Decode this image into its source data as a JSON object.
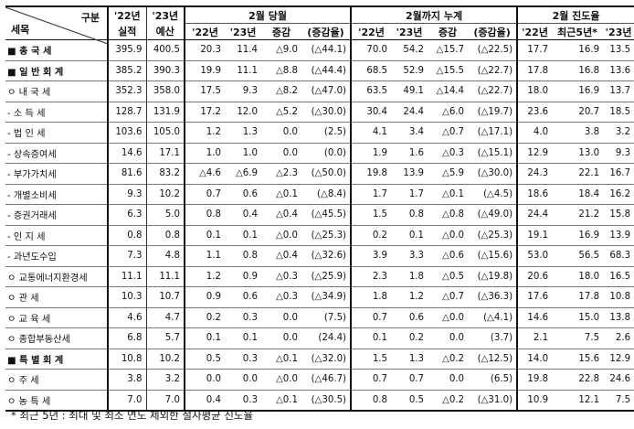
{
  "header": {
    "gubun": "구분",
    "semok": "세목",
    "y22_top": "'22년",
    "y22_bot": "실적",
    "y23_top": "'23년",
    "y23_bot": "예산",
    "feb_month": "2월 당월",
    "feb_cum": "2월까지 누계",
    "progress": "2월 진도율",
    "sub_m": [
      "'22년",
      "'23년",
      "증감",
      "(증감율)"
    ],
    "sub_c": [
      "'22년",
      "'23년",
      "증감",
      "(증감율)"
    ],
    "sub_p": [
      "'22년",
      "최근5년*",
      "'23년"
    ]
  },
  "rows": [
    {
      "item": "■ 총 국 세",
      "v": [
        "395.9",
        "400.5",
        "20.3",
        "11.4",
        "△9.0",
        "(△44.1)",
        "70.0",
        "54.2",
        "△15.7",
        "(△22.5)",
        "17.7",
        "16.9",
        "13.5"
      ]
    },
    {
      "item": "■ 일 반 회 계",
      "v": [
        "385.2",
        "390.3",
        "19.9",
        "11.1",
        "△8.8",
        "(△44.4)",
        "68.5",
        "52.9",
        "△15.5",
        "(△22.7)",
        "17.8",
        "16.8",
        "13.6"
      ]
    },
    {
      "item": "ㅇ 내   국   세",
      "v": [
        "352.3",
        "358.0",
        "17.5",
        "9.3",
        "△8.2",
        "(△47.0)",
        "63.5",
        "49.1",
        "△14.4",
        "(△22.7)",
        "18.0",
        "16.9",
        "13.7"
      ]
    },
    {
      "item": "- 소   득   세",
      "v": [
        "128.7",
        "131.9",
        "17.2",
        "12.0",
        "△5.2",
        "(△30.0)",
        "30.4",
        "24.4",
        "△6.0",
        "(△19.7)",
        "23.6",
        "20.7",
        "18.5"
      ]
    },
    {
      "item": "- 법   인   세",
      "v": [
        "103.6",
        "105.0",
        "1.2",
        "1.3",
        "0.0",
        "(2.5)",
        "4.1",
        "3.4",
        "△0.7",
        "(△17.1)",
        "4.0",
        "3.8",
        "3.2"
      ]
    },
    {
      "item": "- 상속증여세",
      "v": [
        "14.6",
        "17.1",
        "1.0",
        "1.0",
        "0.0",
        "(0.0)",
        "1.9",
        "1.6",
        "△0.3",
        "(△15.1)",
        "12.9",
        "13.0",
        "9.3"
      ]
    },
    {
      "item": "- 부가가치세",
      "v": [
        "81.6",
        "83.2",
        "△4.6",
        "△6.9",
        "△2.3",
        "(△50.0)",
        "19.8",
        "13.9",
        "△5.9",
        "(△30.0)",
        "24.3",
        "22.1",
        "16.7"
      ]
    },
    {
      "item": "- 개별소비세",
      "v": [
        "9.3",
        "10.2",
        "0.7",
        "0.6",
        "△0.1",
        "(△8.4)",
        "1.7",
        "1.7",
        "△0.1",
        "(△4.5)",
        "18.6",
        "18.4",
        "16.2"
      ]
    },
    {
      "item": "- 증권거래세",
      "v": [
        "6.3",
        "5.0",
        "0.8",
        "0.4",
        "△0.4",
        "(△45.5)",
        "1.5",
        "0.8",
        "△0.8",
        "(△49.0)",
        "24.4",
        "21.2",
        "15.8"
      ]
    },
    {
      "item": "- 인   지   세",
      "v": [
        "0.8",
        "0.8",
        "0.1",
        "0.1",
        "△0.0",
        "(△25.3)",
        "0.2",
        "0.1",
        "△0.0",
        "(△25.3)",
        "19.1",
        "16.9",
        "13.9"
      ]
    },
    {
      "item": "- 과년도수입",
      "v": [
        "7.3",
        "4.8",
        "1.1",
        "0.8",
        "△0.4",
        "(△32.6)",
        "3.9",
        "3.3",
        "△0.6",
        "(△15.6)",
        "53.0",
        "56.5",
        "68.3"
      ]
    },
    {
      "item": "ㅇ 교통에너지환경세",
      "v": [
        "11.1",
        "11.1",
        "1.2",
        "0.9",
        "△0.3",
        "(△25.9)",
        "2.3",
        "1.8",
        "△0.5",
        "(△19.8)",
        "20.6",
        "18.0",
        "16.5"
      ]
    },
    {
      "item": "ㅇ 관   세",
      "v": [
        "10.3",
        "10.7",
        "0.9",
        "0.6",
        "△0.3",
        "(△34.9)",
        "1.8",
        "1.2",
        "△0.7",
        "(△36.3)",
        "17.6",
        "17.8",
        "10.8"
      ]
    },
    {
      "item": "ㅇ 교   육   세",
      "v": [
        "4.6",
        "4.7",
        "0.2",
        "0.3",
        "0.0",
        "(7.5)",
        "0.7",
        "0.6",
        "△0.0",
        "(△4.1)",
        "14.6",
        "15.0",
        "13.8"
      ]
    },
    {
      "item": "ㅇ 종합부동산세",
      "v": [
        "6.8",
        "5.7",
        "0.1",
        "0.1",
        "0.0",
        "(24.4)",
        "0.1",
        "0.2",
        "0.0",
        "(3.7)",
        "2.1",
        "7.5",
        "2.6"
      ]
    },
    {
      "item": "■ 특 별 회 계",
      "v": [
        "10.8",
        "10.2",
        "0.5",
        "0.3",
        "△0.1",
        "(△32.0)",
        "1.5",
        "1.3",
        "△0.2",
        "(△12.5)",
        "14.0",
        "15.6",
        "12.9"
      ]
    },
    {
      "item": "ㅇ 주         세",
      "v": [
        "3.8",
        "3.2",
        "0.0",
        "0.0",
        "△0.0",
        "(△46.7)",
        "0.7",
        "0.7",
        "0.0",
        "(6.5)",
        "19.8",
        "22.8",
        "24.6"
      ]
    },
    {
      "item": "ㅇ 농   특   세",
      "v": [
        "7.0",
        "7.0",
        "0.4",
        "0.3",
        "△0.1",
        "(△30.5)",
        "0.8",
        "0.5",
        "△0.2",
        "(△31.0)",
        "10.9",
        "12.1",
        "7.5"
      ]
    }
  ],
  "footnote": "* 최근 5년 : 최대 및 최소 연도 제외한 절사평균 진도율"
}
